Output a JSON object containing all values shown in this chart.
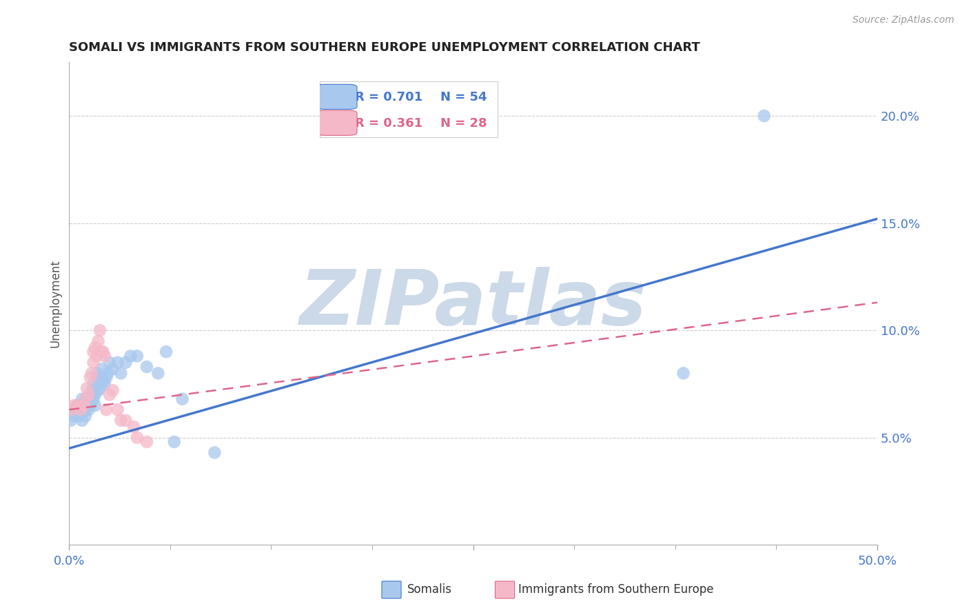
{
  "title": "SOMALI VS IMMIGRANTS FROM SOUTHERN EUROPE UNEMPLOYMENT CORRELATION CHART",
  "source": "Source: ZipAtlas.com",
  "ylabel": "Unemployment",
  "xlim": [
    0.0,
    0.5
  ],
  "ylim": [
    0.0,
    0.225
  ],
  "yticks": [
    0.05,
    0.1,
    0.15,
    0.2
  ],
  "ytick_labels": [
    "5.0%",
    "10.0%",
    "15.0%",
    "20.0%"
  ],
  "background_color": "#ffffff",
  "grid_color": "#cccccc",
  "somali_color": "#a8c8ee",
  "southern_europe_color": "#f5b8c8",
  "somali_line_color": "#4477cc",
  "southern_europe_line_color": "#dd6688",
  "watermark_color": "#ccd9e8",
  "somali_x": [
    0.001,
    0.002,
    0.003,
    0.004,
    0.005,
    0.005,
    0.006,
    0.006,
    0.007,
    0.007,
    0.008,
    0.008,
    0.009,
    0.009,
    0.01,
    0.01,
    0.011,
    0.011,
    0.012,
    0.012,
    0.013,
    0.013,
    0.014,
    0.014,
    0.015,
    0.015,
    0.016,
    0.016,
    0.017,
    0.017,
    0.018,
    0.018,
    0.019,
    0.02,
    0.02,
    0.021,
    0.022,
    0.023,
    0.024,
    0.025,
    0.027,
    0.03,
    0.032,
    0.035,
    0.038,
    0.042,
    0.048,
    0.055,
    0.06,
    0.065,
    0.07,
    0.09,
    0.38,
    0.43
  ],
  "somali_y": [
    0.058,
    0.062,
    0.06,
    0.063,
    0.062,
    0.065,
    0.06,
    0.065,
    0.062,
    0.065,
    0.058,
    0.068,
    0.062,
    0.065,
    0.06,
    0.063,
    0.065,
    0.068,
    0.063,
    0.068,
    0.065,
    0.07,
    0.068,
    0.072,
    0.068,
    0.075,
    0.07,
    0.065,
    0.075,
    0.08,
    0.072,
    0.078,
    0.073,
    0.082,
    0.078,
    0.076,
    0.075,
    0.078,
    0.08,
    0.085,
    0.082,
    0.085,
    0.08,
    0.085,
    0.088,
    0.088,
    0.083,
    0.08,
    0.09,
    0.048,
    0.068,
    0.043,
    0.08,
    0.2
  ],
  "southern_europe_x": [
    0.001,
    0.003,
    0.005,
    0.007,
    0.009,
    0.01,
    0.011,
    0.012,
    0.013,
    0.014,
    0.015,
    0.015,
    0.016,
    0.017,
    0.018,
    0.019,
    0.02,
    0.021,
    0.022,
    0.023,
    0.025,
    0.027,
    0.03,
    0.032,
    0.035,
    0.04,
    0.042,
    0.048
  ],
  "southern_europe_y": [
    0.063,
    0.065,
    0.065,
    0.063,
    0.065,
    0.068,
    0.073,
    0.07,
    0.078,
    0.08,
    0.085,
    0.09,
    0.092,
    0.088,
    0.095,
    0.1,
    0.09,
    0.09,
    0.088,
    0.063,
    0.07,
    0.072,
    0.063,
    0.058,
    0.058,
    0.055,
    0.05,
    0.048
  ],
  "somali_trendline": [
    0.0,
    0.5,
    0.045,
    0.152
  ],
  "southern_trendline": [
    0.0,
    0.5,
    0.063,
    0.113
  ]
}
